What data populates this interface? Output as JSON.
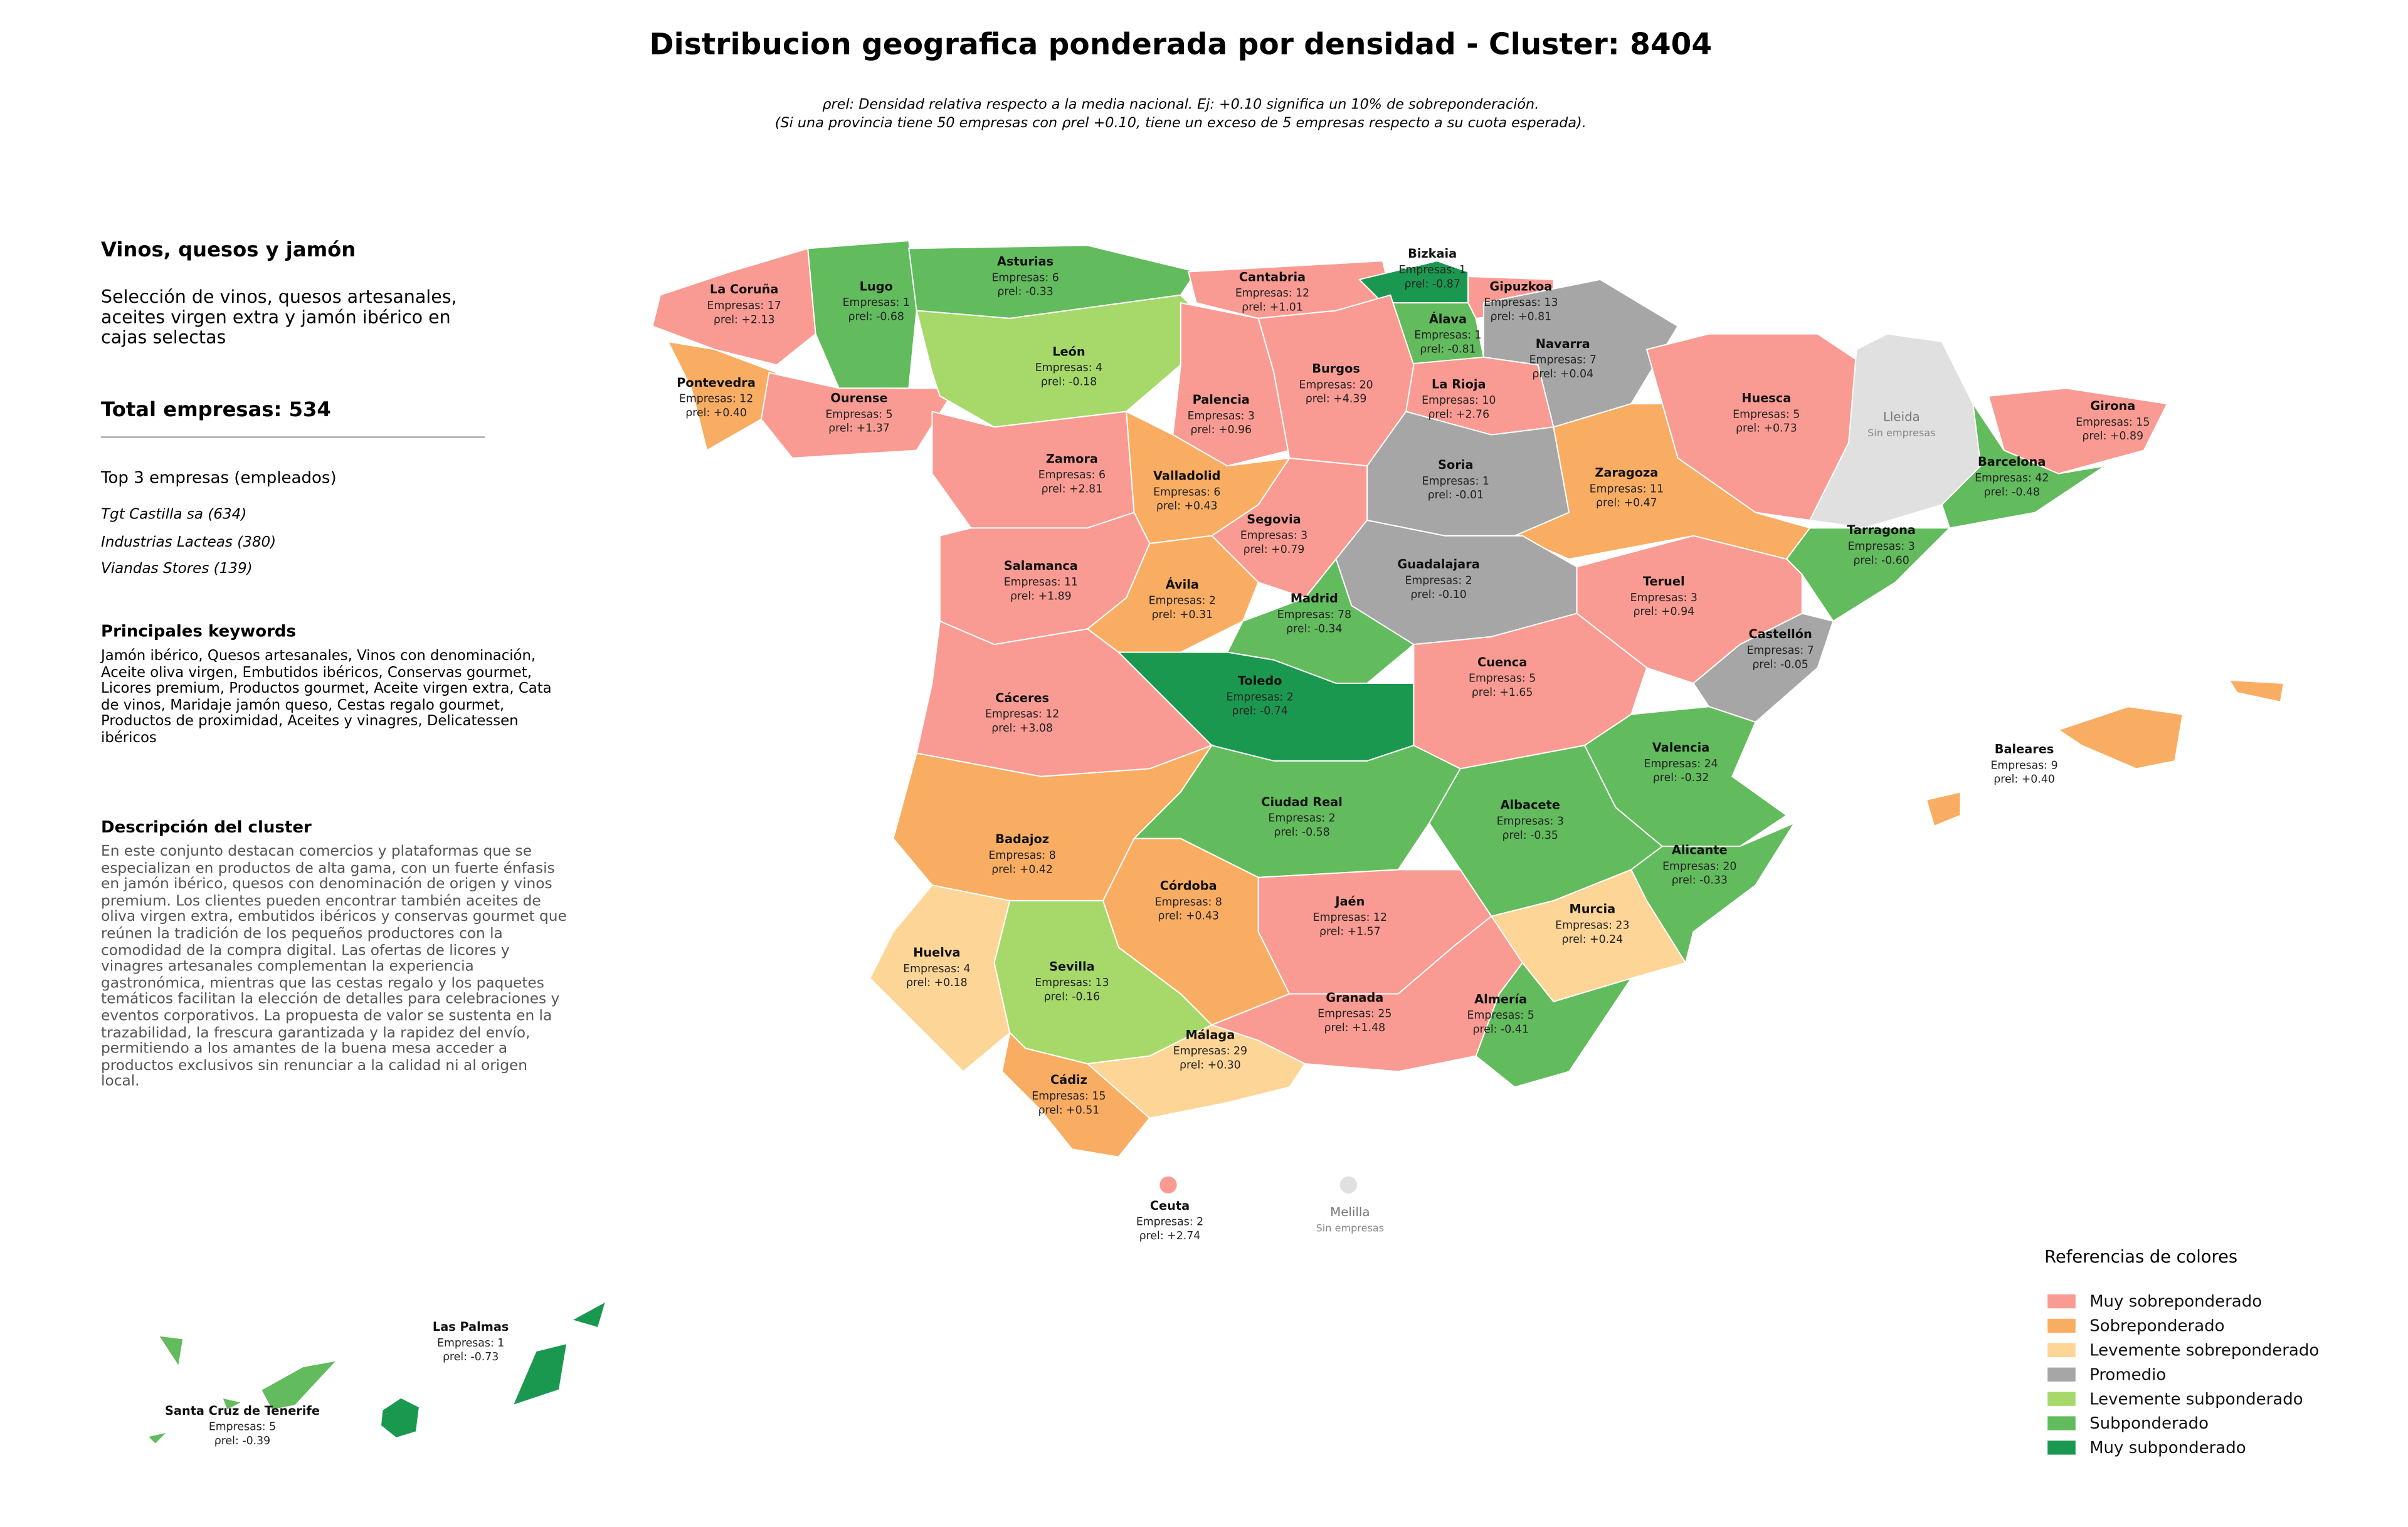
{
  "header": {
    "title": "Distribucion geografica ponderada por densidad - Cluster: 8404",
    "subtitle": [
      "ρrel: Densidad relativa respecto a la media nacional. Ej: +0.10 significa un 10% de sobreponderación.",
      "(Si una provincia tiene 50 empresas con ρrel +0.10, tiene un exceso de 5 empresas respecto a su cuota esperada)."
    ]
  },
  "panel": {
    "title": "Vinos, quesos y jamón",
    "description": "Selección de vinos, quesos artesanales, aceites virgen extra y jamón ibérico en cajas selectas",
    "total": "Total empresas: 534",
    "top_heading": "Top 3 empresas (empleados)",
    "top": [
      "Tgt Castilla sa (634)",
      "Industrias Lacteas (380)",
      "Viandas Stores (139)"
    ],
    "keywords_heading": "Principales keywords",
    "keywords": "Jamón ibérico, Quesos artesanales, Vinos con denominación, Aceite oliva virgen, Embutidos ibéricos, Conservas gourmet, Licores premium, Productos gourmet, Aceite virgen extra, Cata de vinos, Maridaje jamón queso, Cestas regalo gourmet, Productos de proximidad, Aceites y vinagres, Delicatessen ibéricos",
    "cluster_heading": "Descripción del cluster",
    "cluster_text": "En este conjunto destacan comercios y plataformas que se especializan en productos de alta gama, con un fuerte énfasis en jamón ibérico, quesos con denominación de origen y vinos premium. Los clientes pueden encontrar también aceites de oliva virgen extra, embutidos ibéricos y conservas gourmet que reúnen la tradición de los pequeños productores con la comodidad de la compra digital. Las ofertas de licores y vinagres artesanales complementan la experiencia gastronómica, mientras que las cestas regalo y los paquetes temáticos facilitan la elección de detalles para celebraciones y eventos corporativos. La propuesta de valor se sustenta en la trazabilidad, la frescura garantizada y la rapidez del envío, permitiendo a los amantes de la buena mesa acceder a productos exclusivos sin renunciar a la calidad ni al origen local."
  },
  "legend": {
    "title": "Referencias de colores",
    "no_data_color": "#e0e0e0",
    "items": [
      {
        "label": "Muy sobreponderado",
        "color": "#f99b93"
      },
      {
        "label": "Sobreponderado",
        "color": "#f8ad62"
      },
      {
        "label": "Levemente sobreponderado",
        "color": "#fdd597"
      },
      {
        "label": "Promedio",
        "color": "#a6a6a6"
      },
      {
        "label": "Levemente subponderado",
        "color": "#a6d96a"
      },
      {
        "label": "Subponderado",
        "color": "#62bb5d"
      },
      {
        "label": "Muy subponderado",
        "color": "#1a9850"
      }
    ]
  },
  "provinces": [
    {
      "name": "La Coruña",
      "empresas": "Empresas: 17",
      "rho": "ρrel: +2.13",
      "category": 0
    },
    {
      "name": "Lugo",
      "empresas": "Empresas: 1",
      "rho": "ρrel: -0.68",
      "category": 5
    },
    {
      "name": "Asturias",
      "empresas": "Empresas: 6",
      "rho": "ρrel: -0.33",
      "category": 5
    },
    {
      "name": "Cantabria",
      "empresas": "Empresas: 12",
      "rho": "ρrel: +1.01",
      "category": 0
    },
    {
      "name": "Bizkaia",
      "empresas": "Empresas: 1",
      "rho": "ρrel: -0.87",
      "category": 6
    },
    {
      "name": "Gipuzkoa",
      "empresas": "Empresas: 13",
      "rho": "ρrel: +0.81",
      "category": 0
    },
    {
      "name": "Navarra",
      "empresas": "Empresas: 7",
      "rho": "ρrel: +0.04",
      "category": 3
    },
    {
      "name": "Álava",
      "empresas": "Empresas: 1",
      "rho": "ρrel: -0.81",
      "category": 5
    },
    {
      "name": "La Rioja",
      "empresas": "Empresas: 10",
      "rho": "ρrel: +2.76",
      "category": 0
    },
    {
      "name": "Pontevedra",
      "empresas": "Empresas: 12",
      "rho": "ρrel: +0.40",
      "category": 1
    },
    {
      "name": "Ourense",
      "empresas": "Empresas: 5",
      "rho": "ρrel: +1.37",
      "category": 0
    },
    {
      "name": "León",
      "empresas": "Empresas: 4",
      "rho": "ρrel: -0.18",
      "category": 4
    },
    {
      "name": "Palencia",
      "empresas": "Empresas: 3",
      "rho": "ρrel: +0.96",
      "category": 0
    },
    {
      "name": "Burgos",
      "empresas": "Empresas: 20",
      "rho": "ρrel: +4.39",
      "category": 0
    },
    {
      "name": "Zamora",
      "empresas": "Empresas: 6",
      "rho": "ρrel: +2.81",
      "category": 0
    },
    {
      "name": "Valladolid",
      "empresas": "Empresas: 6",
      "rho": "ρrel: +0.43",
      "category": 1
    },
    {
      "name": "Soria",
      "empresas": "Empresas: 1",
      "rho": "ρrel: -0.01",
      "category": 3
    },
    {
      "name": "Huesca",
      "empresas": "Empresas: 5",
      "rho": "ρrel: +0.73",
      "category": 0
    },
    {
      "name": "Zaragoza",
      "empresas": "Empresas: 11",
      "rho": "ρrel: +0.47",
      "category": 1
    },
    {
      "name": "Lleida",
      "note": "Sin empresas"
    },
    {
      "name": "Girona",
      "empresas": "Empresas: 15",
      "rho": "ρrel: +0.89",
      "category": 0
    },
    {
      "name": "Barcelona",
      "empresas": "Empresas: 42",
      "rho": "ρrel: -0.48",
      "category": 5
    },
    {
      "name": "Tarragona",
      "empresas": "Empresas: 3",
      "rho": "ρrel: -0.60",
      "category": 5
    },
    {
      "name": "Segovia",
      "empresas": "Empresas: 3",
      "rho": "ρrel: +0.79",
      "category": 0
    },
    {
      "name": "Salamanca",
      "empresas": "Empresas: 11",
      "rho": "ρrel: +1.89",
      "category": 0
    },
    {
      "name": "Ávila",
      "empresas": "Empresas: 2",
      "rho": "ρrel: +0.31",
      "category": 1
    },
    {
      "name": "Guadalajara",
      "empresas": "Empresas: 2",
      "rho": "ρrel: -0.10",
      "category": 3
    },
    {
      "name": "Madrid",
      "empresas": "Empresas: 78",
      "rho": "ρrel: -0.34",
      "category": 5
    },
    {
      "name": "Teruel",
      "empresas": "Empresas: 3",
      "rho": "ρrel: +0.94",
      "category": 0
    },
    {
      "name": "Castellón",
      "empresas": "Empresas: 7",
      "rho": "ρrel: -0.05",
      "category": 3
    },
    {
      "name": "Cáceres",
      "empresas": "Empresas: 12",
      "rho": "ρrel: +3.08",
      "category": 0
    },
    {
      "name": "Toledo",
      "empresas": "Empresas: 2",
      "rho": "ρrel: -0.74",
      "category": 6
    },
    {
      "name": "Cuenca",
      "empresas": "Empresas: 5",
      "rho": "ρrel: +1.65",
      "category": 0
    },
    {
      "name": "Valencia",
      "empresas": "Empresas: 24",
      "rho": "ρrel: -0.32",
      "category": 5
    },
    {
      "name": "Badajoz",
      "empresas": "Empresas: 8",
      "rho": "ρrel: +0.42",
      "category": 1
    },
    {
      "name": "Ciudad Real",
      "empresas": "Empresas: 2",
      "rho": "ρrel: -0.58",
      "category": 5
    },
    {
      "name": "Albacete",
      "empresas": "Empresas: 3",
      "rho": "ρrel: -0.35",
      "category": 5
    },
    {
      "name": "Córdoba",
      "empresas": "Empresas: 8",
      "rho": "ρrel: +0.43",
      "category": 1
    },
    {
      "name": "Jaén",
      "empresas": "Empresas: 12",
      "rho": "ρrel: +1.57",
      "category": 0
    },
    {
      "name": "Huelva",
      "empresas": "Empresas: 4",
      "rho": "ρrel: +0.18",
      "category": 2
    },
    {
      "name": "Sevilla",
      "empresas": "Empresas: 13",
      "rho": "ρrel: -0.16",
      "category": 4
    },
    {
      "name": "Murcia",
      "empresas": "Empresas: 23",
      "rho": "ρrel: +0.24",
      "category": 2
    },
    {
      "name": "Alicante",
      "empresas": "Empresas: 20",
      "rho": "ρrel: -0.33",
      "category": 5
    },
    {
      "name": "Granada",
      "empresas": "Empresas: 25",
      "rho": "ρrel: +1.48",
      "category": 0
    },
    {
      "name": "Almería",
      "empresas": "Empresas: 5",
      "rho": "ρrel: -0.41",
      "category": 5
    },
    {
      "name": "Málaga",
      "empresas": "Empresas: 29",
      "rho": "ρrel: +0.30",
      "category": 2
    },
    {
      "name": "Cádiz",
      "empresas": "Empresas: 15",
      "rho": "ρrel: +0.51",
      "category": 1
    },
    {
      "name": "Baleares",
      "empresas": "Empresas: 9",
      "rho": "ρrel: +0.40",
      "category": 1
    },
    {
      "name": "Ceuta",
      "empresas": "Empresas: 2",
      "rho": "ρrel: +2.74",
      "category": 0
    },
    {
      "name": "Melilla",
      "note": "Sin empresas"
    },
    {
      "name": "Las Palmas",
      "empresas": "Empresas: 1",
      "rho": "ρrel: -0.73",
      "category": 6
    },
    {
      "name": "Santa Cruz de Tenerife",
      "empresas": "Empresas: 5",
      "rho": "ρrel: -0.39",
      "category": 5
    }
  ]
}
